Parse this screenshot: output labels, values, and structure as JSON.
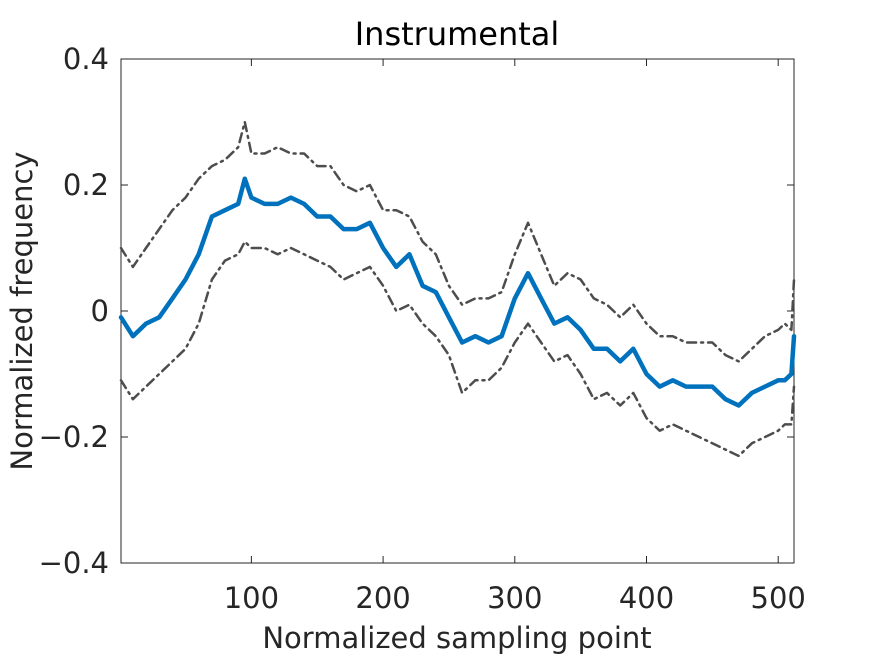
{
  "chart_data": {
    "type": "line",
    "title": "Instrumental",
    "xlabel": "Normalized sampling point",
    "ylabel": "Normalized frequency",
    "xlim": [
      1,
      512
    ],
    "ylim": [
      -0.4,
      0.4
    ],
    "x_ticks": [
      100,
      200,
      300,
      400,
      500
    ],
    "x_tick_labels": [
      "100",
      "200",
      "300",
      "400",
      "500"
    ],
    "y_ticks": [
      0.4,
      0.2,
      0,
      -0.2,
      -0.4
    ],
    "y_tick_labels": [
      "0.4",
      "0.2",
      "0",
      "−0.2",
      "−0.4"
    ],
    "grid": false,
    "legend": "none",
    "x": [
      1,
      10,
      20,
      30,
      40,
      50,
      60,
      70,
      80,
      90,
      95,
      100,
      110,
      120,
      130,
      140,
      150,
      160,
      170,
      180,
      190,
      200,
      210,
      220,
      230,
      240,
      250,
      260,
      270,
      280,
      290,
      300,
      310,
      320,
      330,
      340,
      350,
      360,
      370,
      380,
      390,
      400,
      410,
      420,
      430,
      440,
      450,
      460,
      470,
      480,
      490,
      500,
      505,
      510,
      512
    ],
    "series": [
      {
        "role": "mean",
        "color": "#0072BD",
        "values": [
          -0.01,
          -0.04,
          -0.02,
          -0.01,
          0.02,
          0.05,
          0.09,
          0.15,
          0.16,
          0.17,
          0.21,
          0.18,
          0.17,
          0.17,
          0.18,
          0.17,
          0.15,
          0.15,
          0.13,
          0.13,
          0.14,
          0.1,
          0.07,
          0.09,
          0.04,
          0.03,
          -0.01,
          -0.05,
          -0.04,
          -0.05,
          -0.04,
          0.02,
          0.06,
          0.02,
          -0.02,
          -0.01,
          -0.03,
          -0.06,
          -0.06,
          -0.08,
          -0.06,
          -0.1,
          -0.12,
          -0.11,
          -0.12,
          -0.12,
          -0.12,
          -0.14,
          -0.15,
          -0.13,
          -0.12,
          -0.11,
          -0.11,
          -0.1,
          -0.04
        ]
      },
      {
        "role": "upper bound",
        "color": "#4D4D4D",
        "values": [
          0.1,
          0.07,
          0.1,
          0.13,
          0.16,
          0.18,
          0.21,
          0.23,
          0.24,
          0.26,
          0.3,
          0.25,
          0.25,
          0.26,
          0.25,
          0.25,
          0.23,
          0.23,
          0.2,
          0.19,
          0.2,
          0.16,
          0.16,
          0.15,
          0.11,
          0.09,
          0.04,
          0.01,
          0.02,
          0.02,
          0.03,
          0.09,
          0.14,
          0.09,
          0.04,
          0.06,
          0.05,
          0.02,
          0.01,
          -0.01,
          0.01,
          -0.02,
          -0.04,
          -0.04,
          -0.05,
          -0.05,
          -0.05,
          -0.07,
          -0.08,
          -0.06,
          -0.04,
          -0.03,
          -0.02,
          -0.03,
          0.05
        ]
      },
      {
        "role": "lower bound",
        "color": "#4D4D4D",
        "values": [
          -0.11,
          -0.14,
          -0.12,
          -0.1,
          -0.08,
          -0.06,
          -0.02,
          0.05,
          0.08,
          0.09,
          0.11,
          0.1,
          0.1,
          0.09,
          0.1,
          0.09,
          0.08,
          0.07,
          0.05,
          0.06,
          0.07,
          0.04,
          0.0,
          0.01,
          -0.02,
          -0.04,
          -0.07,
          -0.13,
          -0.11,
          -0.11,
          -0.09,
          -0.05,
          -0.02,
          -0.05,
          -0.08,
          -0.07,
          -0.1,
          -0.14,
          -0.13,
          -0.15,
          -0.13,
          -0.17,
          -0.19,
          -0.18,
          -0.19,
          -0.2,
          -0.21,
          -0.22,
          -0.23,
          -0.21,
          -0.2,
          -0.19,
          -0.18,
          -0.18,
          -0.12
        ]
      }
    ]
  }
}
